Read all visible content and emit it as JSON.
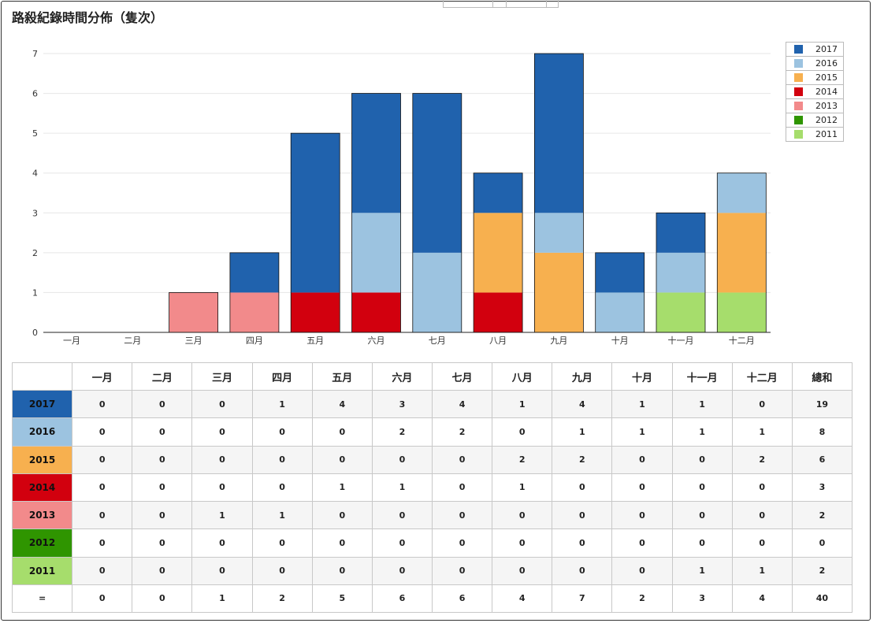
{
  "page": {
    "title": "路殺紀錄時間分佈（隻次）"
  },
  "chart_data": {
    "type": "bar",
    "stacked": true,
    "title": "路殺紀錄時間分佈（隻次）",
    "categories": [
      "一月",
      "二月",
      "三月",
      "四月",
      "五月",
      "六月",
      "七月",
      "八月",
      "九月",
      "十月",
      "十一月",
      "十二月"
    ],
    "ylim": [
      0,
      7
    ],
    "yticks": [
      "0",
      "1",
      "2",
      "3",
      "4",
      "5",
      "6",
      "7"
    ],
    "series": [
      {
        "name": "2011",
        "color": "#a6dd6c",
        "values": [
          0,
          0,
          0,
          0,
          0,
          0,
          0,
          0,
          0,
          0,
          1,
          1
        ]
      },
      {
        "name": "2012",
        "color": "#2f9500",
        "values": [
          0,
          0,
          0,
          0,
          0,
          0,
          0,
          0,
          0,
          0,
          0,
          0
        ]
      },
      {
        "name": "2013",
        "color": "#f28a8b",
        "values": [
          0,
          0,
          1,
          1,
          0,
          0,
          0,
          0,
          0,
          0,
          0,
          0
        ]
      },
      {
        "name": "2014",
        "color": "#d2000e",
        "values": [
          0,
          0,
          0,
          0,
          1,
          1,
          0,
          1,
          0,
          0,
          0,
          0
        ]
      },
      {
        "name": "2015",
        "color": "#f7b04f",
        "values": [
          0,
          0,
          0,
          0,
          0,
          0,
          0,
          2,
          2,
          0,
          0,
          2
        ]
      },
      {
        "name": "2016",
        "color": "#9cc3e0",
        "values": [
          0,
          0,
          0,
          0,
          0,
          2,
          2,
          0,
          1,
          1,
          1,
          1
        ]
      },
      {
        "name": "2017",
        "color": "#2062ad",
        "values": [
          0,
          0,
          0,
          1,
          4,
          3,
          4,
          1,
          4,
          1,
          1,
          0
        ]
      }
    ],
    "legend_order": [
      "2017",
      "2016",
      "2015",
      "2014",
      "2013",
      "2012",
      "2011"
    ],
    "legend_position": "top-right",
    "grid": true
  },
  "table": {
    "headers": [
      "一月",
      "二月",
      "三月",
      "四月",
      "五月",
      "六月",
      "七月",
      "八月",
      "九月",
      "十月",
      "十一月",
      "十二月",
      "總和"
    ],
    "rows": [
      {
        "label": "2017",
        "color": "#2062ad",
        "values": [
          "0",
          "0",
          "0",
          "1",
          "4",
          "3",
          "4",
          "1",
          "4",
          "1",
          "1",
          "0",
          "19"
        ]
      },
      {
        "label": "2016",
        "color": "#9cc3e0",
        "values": [
          "0",
          "0",
          "0",
          "0",
          "0",
          "2",
          "2",
          "0",
          "1",
          "1",
          "1",
          "1",
          "8"
        ]
      },
      {
        "label": "2015",
        "color": "#f7b04f",
        "values": [
          "0",
          "0",
          "0",
          "0",
          "0",
          "0",
          "0",
          "2",
          "2",
          "0",
          "0",
          "2",
          "6"
        ]
      },
      {
        "label": "2014",
        "color": "#d2000e",
        "values": [
          "0",
          "0",
          "0",
          "0",
          "1",
          "1",
          "0",
          "1",
          "0",
          "0",
          "0",
          "0",
          "3"
        ]
      },
      {
        "label": "2013",
        "color": "#f28a8b",
        "values": [
          "0",
          "0",
          "1",
          "1",
          "0",
          "0",
          "0",
          "0",
          "0",
          "0",
          "0",
          "0",
          "2"
        ]
      },
      {
        "label": "2012",
        "color": "#2f9500",
        "values": [
          "0",
          "0",
          "0",
          "0",
          "0",
          "0",
          "0",
          "0",
          "0",
          "0",
          "0",
          "0",
          "0"
        ]
      },
      {
        "label": "2011",
        "color": "#a6dd6c",
        "values": [
          "0",
          "0",
          "0",
          "0",
          "0",
          "0",
          "0",
          "0",
          "0",
          "0",
          "1",
          "1",
          "2"
        ]
      }
    ],
    "total_row": {
      "label": "=",
      "values": [
        "0",
        "0",
        "1",
        "2",
        "5",
        "6",
        "6",
        "4",
        "7",
        "2",
        "3",
        "4",
        "40"
      ]
    }
  }
}
